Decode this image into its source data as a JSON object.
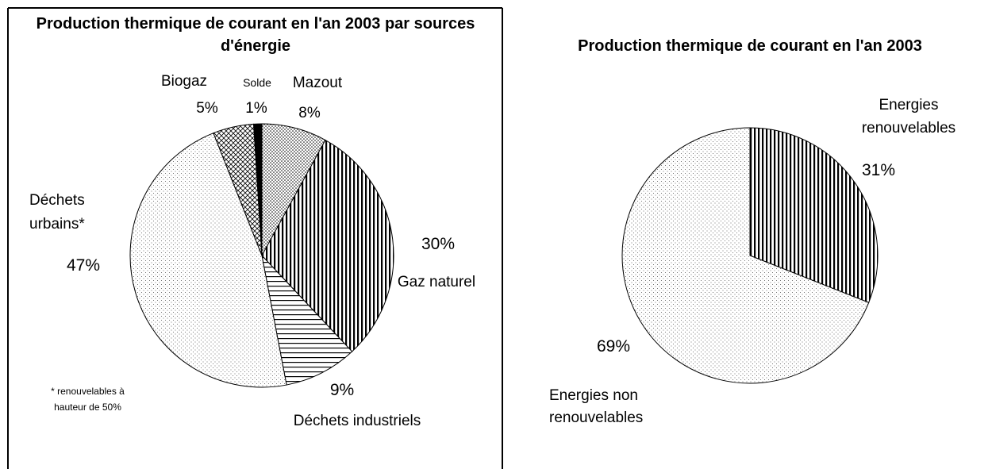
{
  "chart_data": [
    {
      "type": "pie",
      "title": "Production thermique de courant en l'an 2003 par sources d'énergie",
      "categories": [
        "Mazout",
        "Gaz naturel",
        "Déchets industriels",
        "Déchets urbains*",
        "Biogaz",
        "Solde"
      ],
      "values": [
        8,
        30,
        9,
        47,
        5,
        1
      ],
      "value_labels": [
        "8%",
        "30%",
        "9%",
        "47%",
        "5%",
        "1%"
      ],
      "note": "* renouvelables à hauteur de 50%"
    },
    {
      "type": "pie",
      "title": "Production thermique de courant en l'an 2003",
      "categories": [
        "Energies renouvelables",
        "Energies non renouvelables"
      ],
      "values": [
        31,
        69
      ],
      "value_labels": [
        "31%",
        "69%"
      ]
    }
  ]
}
